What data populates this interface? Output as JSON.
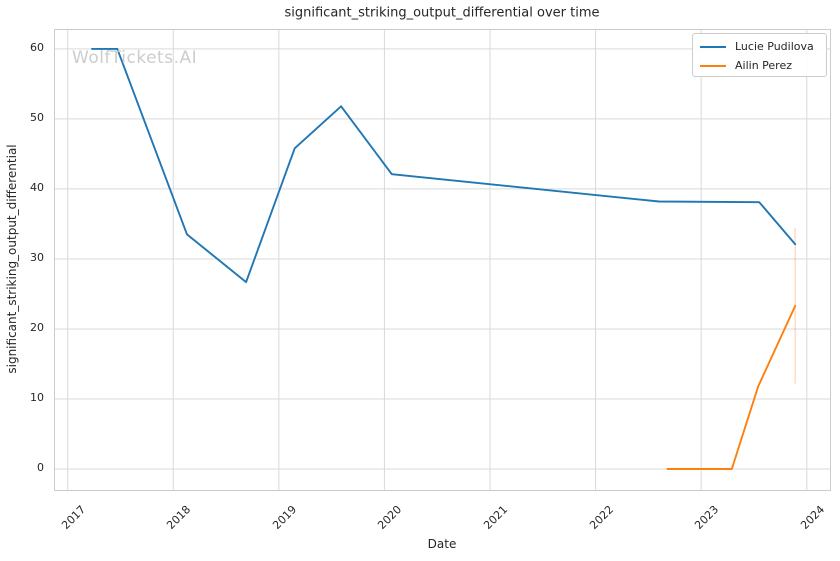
{
  "figure": {
    "title": "significant_striking_output_differential over time",
    "xlabel": "Date",
    "ylabel": "significant_striking_output_differential",
    "watermark": "WolfTickets.AI"
  },
  "legend": {
    "position": "upper right",
    "entries": [
      {
        "label": "Lucie Pudilova",
        "color": "#1f77b4"
      },
      {
        "label": "Ailin Perez",
        "color": "#ff7f0e"
      }
    ]
  },
  "colors": {
    "grid": "#d9d9d9",
    "spine": "#cccccc",
    "text": "#262626",
    "watermark": "#cdcdcd",
    "background": "#ffffff"
  },
  "chart_data": {
    "type": "line",
    "title": "significant_striking_output_differential over time",
    "xlabel": "Date",
    "ylabel": "significant_striking_output_differential",
    "x_unit": "decimal_year",
    "grid": true,
    "legend_position": "upper right",
    "xlim": [
      2016.88,
      2024.22
    ],
    "ylim": [
      -3.0,
      62.7
    ],
    "xticks": [
      2017,
      2018,
      2019,
      2020,
      2021,
      2022,
      2023,
      2024
    ],
    "yticks": [
      0,
      10,
      20,
      30,
      40,
      50,
      60
    ],
    "series": [
      {
        "name": "Lucie Pudilova",
        "color": "#1f77b4",
        "x": [
          2017.23,
          2017.47,
          2018.13,
          2018.69,
          2019.15,
          2019.59,
          2020.07,
          2022.6,
          2023.55,
          2023.89
        ],
        "y": [
          60.0,
          60.0,
          33.5,
          26.7,
          45.8,
          51.8,
          42.1,
          38.2,
          38.1,
          32.1
        ]
      },
      {
        "name": "Ailin Perez",
        "color": "#ff7f0e",
        "x": [
          2022.68,
          2023.29,
          2023.54,
          2023.89
        ],
        "y": [
          0.0,
          0.0,
          11.8,
          23.3
        ],
        "error_bar": {
          "x": 2023.89,
          "y_low": 12.2,
          "y_high": 34.4,
          "opacity": 0.25
        }
      }
    ]
  }
}
